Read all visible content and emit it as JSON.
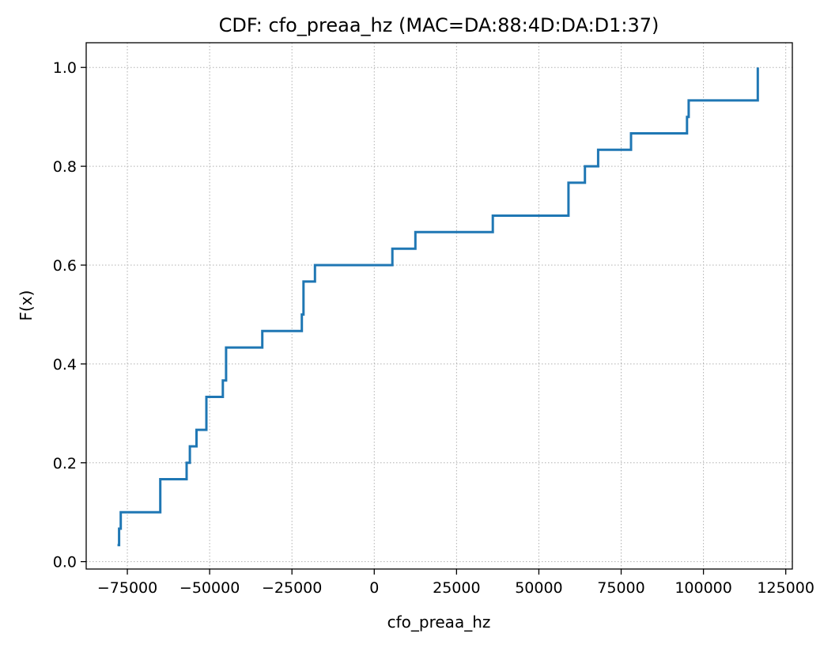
{
  "chart_data": {
    "type": "line",
    "title": "CDF: cfo_preaa_hz (MAC=DA:88:4D:DA:D1:37)",
    "xlabel": "cfo_preaa_hz",
    "ylabel": "F(x)",
    "xlim": [
      -87500,
      127000
    ],
    "ylim": [
      -0.015,
      1.05
    ],
    "xticks": [
      -75000,
      -50000,
      -25000,
      0,
      25000,
      50000,
      75000,
      100000,
      125000
    ],
    "xtick_labels": [
      "−75000",
      "−50000",
      "−25000",
      "0",
      "25000",
      "50000",
      "75000",
      "100000",
      "125000"
    ],
    "yticks": [
      0.0,
      0.2,
      0.4,
      0.6,
      0.8,
      1.0
    ],
    "ytick_labels": [
      "0.0",
      "0.2",
      "0.4",
      "0.6",
      "0.8",
      "1.0"
    ],
    "grid": true,
    "step": "post",
    "line_color": "#1f77b4",
    "series": [
      {
        "x": [
          -78000,
          -77500,
          -77000,
          -65000,
          -57000,
          -56000,
          -54000,
          -51000,
          -46000,
          -45000,
          -34000,
          -22000,
          -21500,
          -18000,
          5500,
          12500,
          36000,
          59000,
          64000,
          68000,
          78000,
          95000,
          95500,
          116500
        ],
        "y": [
          0.0333,
          0.0667,
          0.1,
          0.1667,
          0.2,
          0.2333,
          0.2667,
          0.3333,
          0.3667,
          0.4333,
          0.4667,
          0.5,
          0.5667,
          0.6,
          0.6333,
          0.6667,
          0.7,
          0.7667,
          0.8,
          0.8333,
          0.8667,
          0.9,
          0.9333,
          1.0
        ]
      }
    ]
  }
}
